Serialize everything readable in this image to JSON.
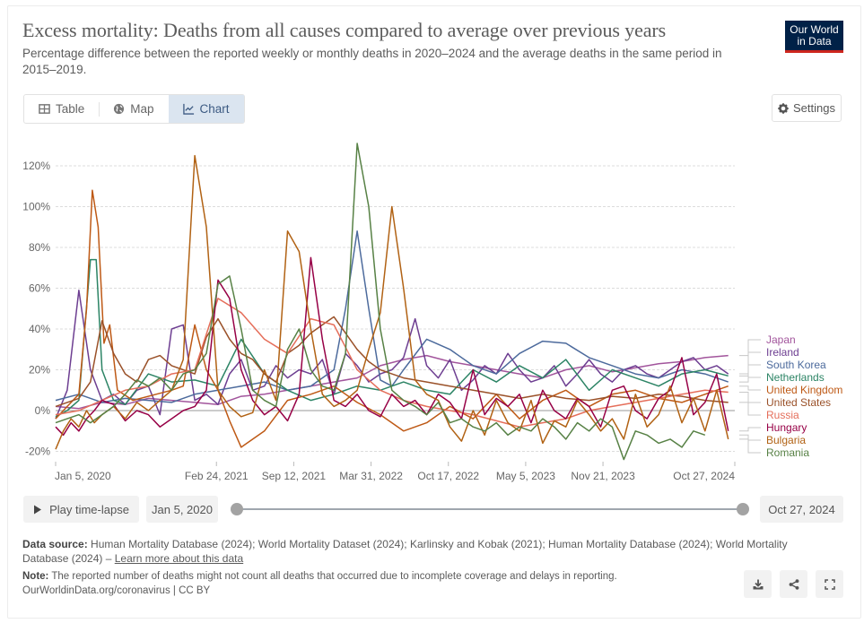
{
  "header": {
    "title": "Excess mortality: Deaths from all causes compared to average over previous years",
    "subtitle": "Percentage difference between the reported weekly or monthly deaths in 2020–2024 and the average deaths in the same period in 2015–2019.",
    "logo_line1": "Our World",
    "logo_line2": "in Data"
  },
  "tabs": [
    {
      "label": "Table",
      "icon": "table-icon",
      "active": false
    },
    {
      "label": "Map",
      "icon": "globe-icon",
      "active": false
    },
    {
      "label": "Chart",
      "icon": "line-chart-icon",
      "active": true
    }
  ],
  "settings_label": "Settings",
  "controls": {
    "play_label": "Play time-lapse",
    "start_date": "Jan 5, 2020",
    "end_date": "Oct 27, 2024",
    "range_start_fraction": 0,
    "range_end_fraction": 1
  },
  "footer": {
    "source_label": "Data source:",
    "source_text": "Human Mortality Database (2024); World Mortality Dataset (2024); Karlinsky and Kobak (2021); Human Mortality Database (2024); World Mortality Database (2024) – ",
    "learn_more": "Learn more about this data",
    "note_label": "Note:",
    "note_text": "The reported number of deaths might not count all deaths that occurred due to incomplete coverage and delays in reporting.",
    "credit": "OurWorldinData.org/coronavirus | CC BY"
  },
  "chart_data": {
    "type": "line",
    "title": "Excess mortality: Deaths from all causes compared to average over previous years",
    "xlabel": "",
    "ylabel": "",
    "ylim": [
      -20,
      130
    ],
    "yticks": [
      -20,
      0,
      20,
      40,
      60,
      80,
      100,
      120
    ],
    "ytick_labels": [
      "-20%",
      "0%",
      "20%",
      "40%",
      "60%",
      "80%",
      "100%",
      "120%"
    ],
    "x_start": "2020-01-05",
    "x_end": "2024-10-27",
    "xticks": [
      "2020-01-05",
      "2021-02-24",
      "2021-09-12",
      "2022-03-31",
      "2022-10-17",
      "2023-05-05",
      "2023-11-21",
      "2024-10-27"
    ],
    "xtick_labels": [
      "Jan 5, 2020",
      "Feb 24, 2021",
      "Sep 12, 2021",
      "Mar 31, 2022",
      "Oct 17, 2022",
      "May 5, 2023",
      "Nov 21, 2023",
      "Oct 27, 2024"
    ],
    "grid": "horizontal-dashed",
    "legend": "right-inline",
    "series": [
      {
        "name": "Japan",
        "color": "#a2559c",
        "x_days": [
          0,
          60,
          120,
          180,
          240,
          300,
          360,
          420,
          480,
          540,
          600,
          660,
          720,
          780,
          840,
          900,
          960,
          1020,
          1080,
          1140,
          1200,
          1260,
          1320,
          1380,
          1440,
          1500,
          1560,
          1620,
          1680,
          1740
        ],
        "values": [
          2,
          1,
          4,
          3,
          6,
          5,
          4,
          3,
          7,
          8,
          10,
          12,
          14,
          16,
          22,
          25,
          27,
          24,
          22,
          20,
          18,
          16,
          20,
          22,
          19,
          21,
          23,
          24,
          26,
          27
        ]
      },
      {
        "name": "Ireland",
        "color": "#6d3e91",
        "x_days": [
          0,
          30,
          60,
          90,
          120,
          150,
          180,
          210,
          240,
          270,
          300,
          330,
          360,
          390,
          420,
          450,
          480,
          510,
          540,
          570,
          600,
          630,
          660,
          690,
          720,
          750,
          780,
          810,
          840,
          870,
          900,
          930,
          960,
          990,
          1020,
          1050,
          1080,
          1110,
          1140,
          1170,
          1200,
          1230,
          1260,
          1290,
          1320,
          1350,
          1380,
          1410,
          1440,
          1470,
          1500,
          1530,
          1560,
          1590,
          1620,
          1650,
          1680,
          1710,
          1740
        ],
        "values": [
          -4,
          10,
          59,
          20,
          5,
          8,
          3,
          10,
          12,
          -2,
          40,
          42,
          5,
          8,
          3,
          18,
          25,
          10,
          12,
          22,
          16,
          20,
          18,
          25,
          8,
          28,
          22,
          14,
          18,
          20,
          26,
          45,
          22,
          16,
          25,
          10,
          15,
          22,
          18,
          28,
          20,
          14,
          16,
          22,
          12,
          18,
          25,
          18,
          14,
          20,
          22,
          18,
          16,
          20,
          24,
          26,
          20,
          22,
          18
        ]
      },
      {
        "name": "South Korea",
        "color": "#4c6a9c",
        "x_days": [
          0,
          60,
          120,
          180,
          240,
          300,
          360,
          420,
          480,
          540,
          600,
          660,
          720,
          750,
          780,
          810,
          840,
          870,
          900,
          960,
          1020,
          1080,
          1140,
          1200,
          1260,
          1320,
          1380,
          1440,
          1500,
          1560,
          1620,
          1680,
          1740
        ],
        "values": [
          5,
          8,
          4,
          6,
          5,
          4,
          8,
          10,
          12,
          14,
          10,
          12,
          20,
          50,
          88,
          50,
          15,
          12,
          20,
          35,
          30,
          22,
          18,
          28,
          34,
          33,
          26,
          22,
          18,
          16,
          20,
          18,
          14
        ]
      },
      {
        "name": "Netherlands",
        "color": "#2c8465",
        "x_days": [
          0,
          30,
          60,
          90,
          105,
          120,
          150,
          180,
          240,
          300,
          360,
          420,
          480,
          540,
          600,
          660,
          720,
          780,
          840,
          900,
          960,
          1020,
          1080,
          1140,
          1200,
          1260,
          1320,
          1380,
          1440,
          1500,
          1560,
          1620,
          1680,
          1740
        ],
        "values": [
          -3,
          0,
          5,
          74,
          74,
          20,
          5,
          3,
          18,
          14,
          15,
          12,
          35,
          18,
          10,
          5,
          8,
          12,
          10,
          14,
          10,
          8,
          20,
          14,
          22,
          16,
          25,
          10,
          20,
          16,
          12,
          18,
          20,
          17
        ]
      },
      {
        "name": "United Kingdom",
        "color": "#be5915",
        "x_days": [
          0,
          30,
          60,
          80,
          95,
          110,
          125,
          140,
          160,
          200,
          260,
          300,
          330,
          360,
          390,
          420,
          450,
          480,
          540,
          600,
          660,
          720,
          780,
          840,
          900,
          960,
          1020,
          1080,
          1140,
          1200,
          1260,
          1320,
          1380,
          1440,
          1500,
          1560,
          1620,
          1680,
          1740
        ],
        "values": [
          -4,
          2,
          8,
          50,
          108,
          90,
          33,
          42,
          10,
          5,
          8,
          10,
          12,
          42,
          20,
          10,
          -5,
          -18,
          -10,
          5,
          8,
          12,
          4,
          -2,
          -10,
          -6,
          2,
          -4,
          8,
          -4,
          5,
          10,
          2,
          8,
          10,
          6,
          4,
          8,
          12
        ]
      },
      {
        "name": "United States",
        "color": "#9a5129",
        "x_days": [
          0,
          30,
          60,
          90,
          120,
          150,
          180,
          210,
          240,
          270,
          300,
          330,
          360,
          390,
          420,
          450,
          480,
          510,
          540,
          570,
          600,
          630,
          660,
          690,
          720,
          750,
          780,
          810,
          840,
          870,
          900,
          960,
          1020,
          1080,
          1140,
          1200,
          1260,
          1320,
          1380,
          1440,
          1500,
          1560,
          1620,
          1680,
          1740
        ],
        "values": [
          2,
          4,
          6,
          14,
          44,
          28,
          18,
          14,
          25,
          27,
          22,
          20,
          18,
          36,
          45,
          35,
          28,
          25,
          18,
          14,
          28,
          32,
          38,
          42,
          46,
          38,
          30,
          24,
          20,
          18,
          16,
          14,
          12,
          10,
          8,
          6,
          8,
          6,
          5,
          7,
          6,
          8,
          7,
          5,
          4
        ]
      },
      {
        "name": "Russia",
        "color": "#e56e5a",
        "x_days": [
          0,
          60,
          120,
          180,
          240,
          300,
          360,
          420,
          480,
          540,
          600,
          660,
          720,
          780,
          840,
          900,
          960,
          1020,
          1080,
          1140,
          1200,
          1260,
          1320,
          1380,
          1440,
          1500,
          1560,
          1620,
          1680,
          1740
        ],
        "values": [
          -2,
          0,
          5,
          10,
          12,
          18,
          20,
          55,
          48,
          35,
          28,
          45,
          42,
          20,
          10,
          5,
          2,
          0,
          -2,
          -5,
          -8,
          -6,
          -4,
          0,
          2,
          4,
          6,
          8,
          10,
          9
        ]
      },
      {
        "name": "Hungary",
        "color": "#970046",
        "x_days": [
          0,
          20,
          40,
          60,
          80,
          100,
          120,
          150,
          180,
          210,
          240,
          270,
          300,
          330,
          360,
          390,
          420,
          450,
          480,
          510,
          540,
          570,
          600,
          630,
          660,
          690,
          720,
          750,
          780,
          810,
          840,
          870,
          900,
          930,
          960,
          990,
          1020,
          1050,
          1080,
          1110,
          1140,
          1170,
          1200,
          1230,
          1260,
          1290,
          1320,
          1350,
          1380,
          1410,
          1440,
          1470,
          1500,
          1530,
          1560,
          1590,
          1620,
          1650,
          1680,
          1710,
          1740
        ],
        "values": [
          -8,
          -12,
          -6,
          -10,
          -4,
          0,
          5,
          3,
          -5,
          0,
          -2,
          -8,
          -4,
          0,
          2,
          10,
          64,
          55,
          20,
          5,
          -2,
          2,
          -5,
          8,
          75,
          35,
          5,
          2,
          8,
          0,
          -3,
          8,
          2,
          5,
          -2,
          8,
          4,
          -4,
          20,
          -2,
          6,
          2,
          8,
          -6,
          10,
          0,
          -4,
          6,
          2,
          -8,
          10,
          12,
          0,
          -4,
          6,
          10,
          26,
          -2,
          4,
          18,
          -10
        ]
      },
      {
        "name": "Bulgaria",
        "color": "#b16214",
        "x_days": [
          0,
          20,
          40,
          60,
          80,
          100,
          120,
          150,
          180,
          210,
          240,
          270,
          300,
          330,
          360,
          390,
          420,
          450,
          480,
          510,
          540,
          570,
          600,
          630,
          660,
          690,
          720,
          750,
          780,
          810,
          840,
          870,
          900,
          930,
          960,
          990,
          1020,
          1050,
          1080,
          1110,
          1140,
          1170,
          1200,
          1230,
          1260,
          1290,
          1320,
          1350,
          1380,
          1410,
          1440,
          1470,
          1500,
          1530,
          1560,
          1590,
          1620,
          1650,
          1680,
          1710,
          1740
        ],
        "values": [
          -19,
          -10,
          -4,
          -8,
          0,
          -6,
          -2,
          2,
          -4,
          4,
          0,
          5,
          10,
          25,
          125,
          90,
          10,
          2,
          -3,
          -1,
          20,
          5,
          88,
          78,
          40,
          8,
          2,
          5,
          10,
          30,
          48,
          100,
          60,
          15,
          8,
          5,
          -8,
          -15,
          0,
          -12,
          5,
          -6,
          -10,
          5,
          -16,
          -5,
          -8,
          5,
          -2,
          -10,
          -4,
          -14,
          8,
          -8,
          -2,
          12,
          -6,
          6,
          -10,
          10,
          -14
        ]
      },
      {
        "name": "Romania",
        "color": "#578145",
        "x_days": [
          0,
          30,
          60,
          90,
          120,
          150,
          180,
          210,
          240,
          270,
          300,
          330,
          360,
          390,
          420,
          450,
          480,
          510,
          540,
          570,
          600,
          630,
          660,
          690,
          720,
          750,
          780,
          810,
          840,
          870,
          900,
          930,
          960,
          990,
          1020,
          1050,
          1080,
          1110,
          1140,
          1170,
          1200,
          1230,
          1260,
          1290,
          1320,
          1350,
          1380,
          1410,
          1440,
          1470,
          1500,
          1530,
          1560,
          1590,
          1620,
          1650,
          1680
        ],
        "values": [
          -6,
          -4,
          -2,
          -6,
          -2,
          2,
          8,
          15,
          12,
          16,
          10,
          18,
          20,
          28,
          62,
          66,
          40,
          10,
          5,
          2,
          30,
          40,
          20,
          12,
          10,
          28,
          131,
          100,
          40,
          10,
          5,
          2,
          -2,
          4,
          -6,
          -4,
          -8,
          -10,
          -6,
          -12,
          -8,
          -10,
          -4,
          -8,
          -14,
          -6,
          -10,
          -4,
          -8,
          -24,
          -10,
          -12,
          -16,
          -14,
          -18,
          -10,
          -12
        ]
      }
    ]
  }
}
